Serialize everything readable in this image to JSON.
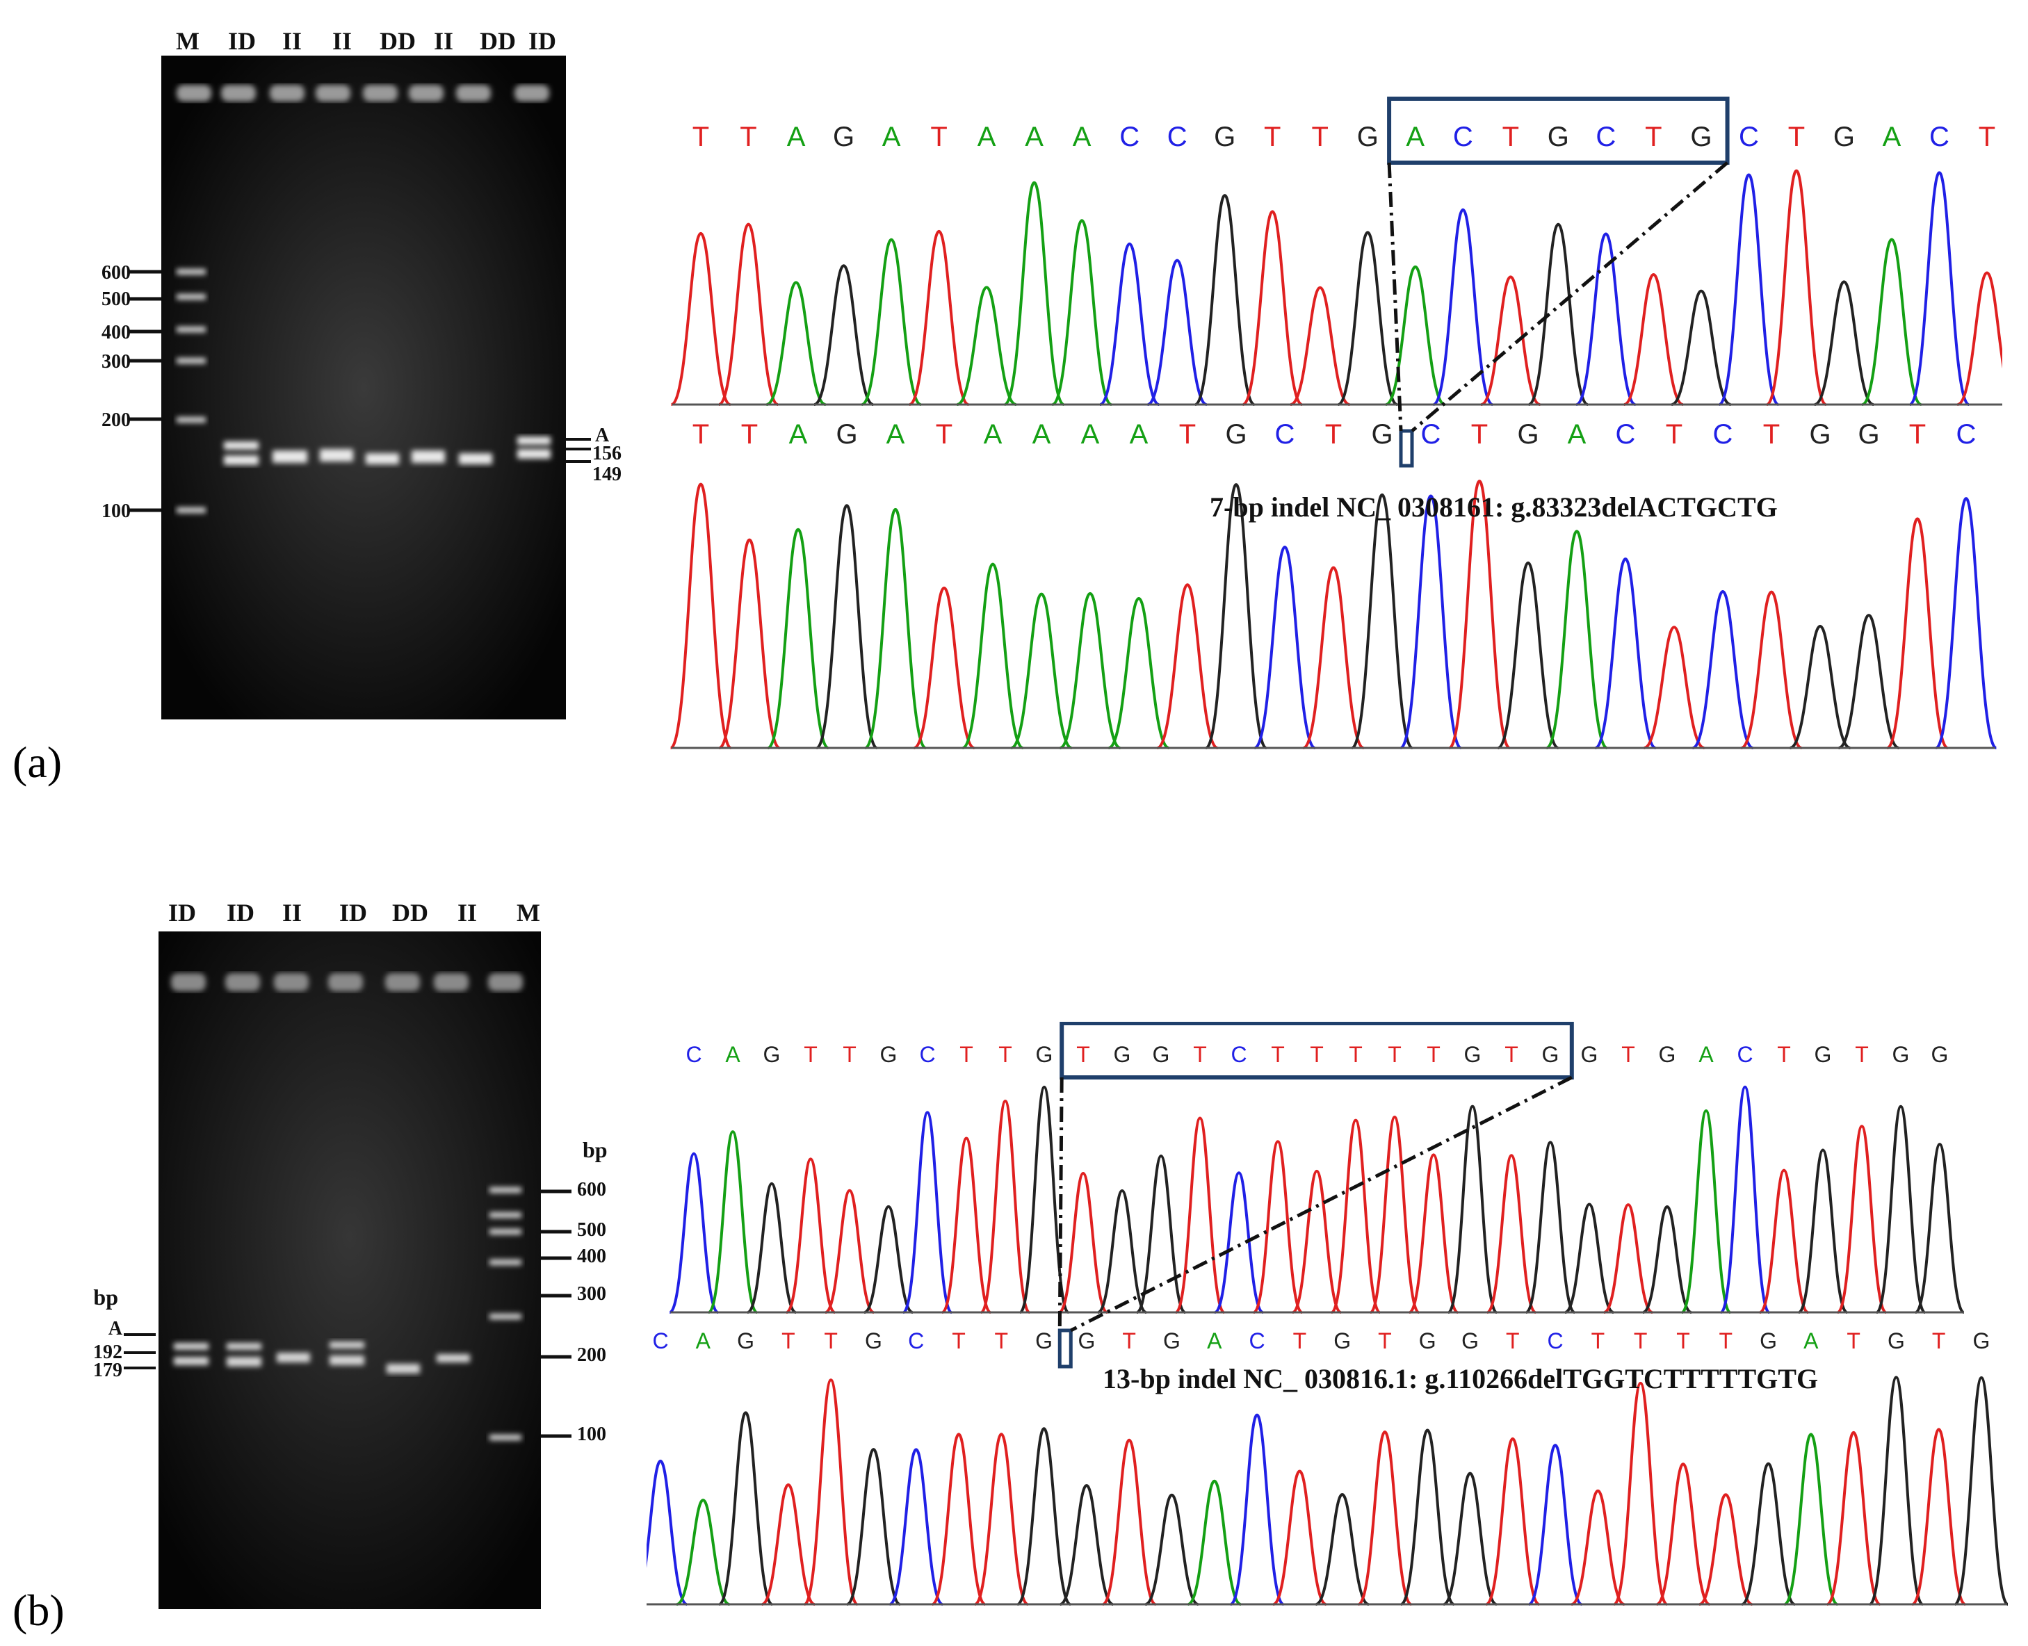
{
  "panel_a": {
    "label": "(a)",
    "gel_lanes": [
      "M",
      "ID",
      "II",
      "II",
      "DD",
      "II",
      "DD",
      "ID"
    ],
    "marker_labels": [
      "600",
      "500",
      "400",
      "300",
      "200",
      "100"
    ],
    "band_labels": [
      "A",
      "156",
      "149"
    ],
    "seq_top": [
      "T",
      "T",
      "A",
      "G",
      "A",
      "T",
      "A",
      "A",
      "A",
      "C",
      "C",
      "G",
      "T",
      "T",
      "G",
      "A",
      "C",
      "T",
      "G",
      "C",
      "T",
      "G",
      "C",
      "T",
      "G",
      "A",
      "C",
      "T"
    ],
    "seq_bottom": [
      "T",
      "T",
      "A",
      "G",
      "A",
      "T",
      "A",
      "A",
      "A",
      "A",
      "T",
      "G",
      "C",
      "T",
      "G",
      "C",
      "T",
      "G",
      "A",
      "C",
      "T",
      "C",
      "T",
      "G",
      "G",
      "T",
      "C"
    ],
    "caption": "7-bp indel NC_ 0308161: g.83323delACTGCTG"
  },
  "panel_b": {
    "label": "(b)",
    "gel_lanes": [
      "ID",
      "ID",
      "II",
      "ID",
      "DD",
      "II",
      "M"
    ],
    "bp_label_right": "bp",
    "bp_label_left": "bp",
    "marker_labels": [
      "600",
      "500",
      "400",
      "300",
      "200",
      "100"
    ],
    "band_labels": [
      "A",
      "192",
      "179"
    ],
    "seq_top": [
      "C",
      "A",
      "G",
      "T",
      "T",
      "G",
      "C",
      "T",
      "T",
      "G",
      "T",
      "G",
      "G",
      "T",
      "C",
      "T",
      "T",
      "T",
      "T",
      "T",
      "G",
      "T",
      "G",
      "G",
      "T",
      "G",
      "A",
      "C",
      "T",
      "G",
      "T",
      "G",
      "G"
    ],
    "seq_bottom": [
      "C",
      "A",
      "G",
      "T",
      "T",
      "G",
      "C",
      "T",
      "T",
      "G",
      "G",
      "T",
      "G",
      "A",
      "C",
      "T",
      "G",
      "T",
      "G",
      "G",
      "T",
      "C",
      "T",
      "T",
      "T",
      "T",
      "G",
      "A",
      "T",
      "G",
      "T",
      "G"
    ],
    "caption": "13-bp indel NC_ 030816.1: g.110266delTGGTCTTTTTGTG"
  },
  "colors": {
    "A": "#14a014",
    "C": "#2020e6",
    "G": "#222222",
    "T": "#e02020",
    "box": "#1f3f6b"
  }
}
